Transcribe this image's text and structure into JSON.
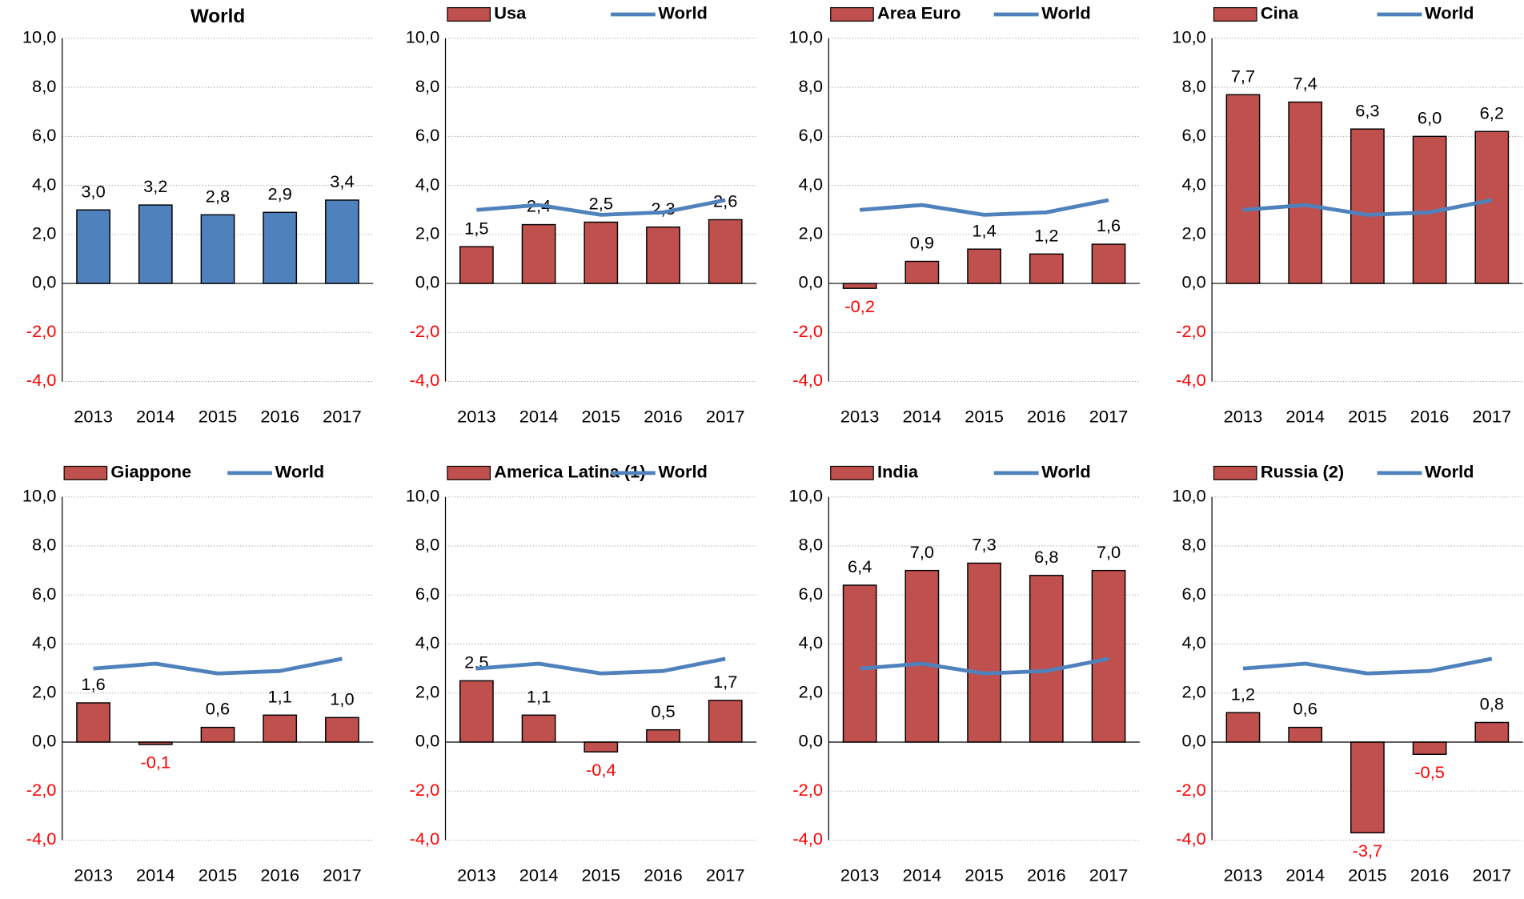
{
  "chart_data": [
    {
      "type": "bar",
      "title": "World",
      "categories": [
        "2013",
        "2014",
        "2015",
        "2016",
        "2017"
      ],
      "values": [
        3.0,
        3.2,
        2.8,
        2.9,
        3.4
      ],
      "value_labels": [
        "3,0",
        "3,2",
        "2,8",
        "2,9",
        "3,4"
      ],
      "color": "#4f81bd",
      "ylim": [
        -4,
        10
      ],
      "yticks": [
        {
          "value": -4,
          "label": "-4,0"
        },
        {
          "value": -2,
          "label": "-2,0"
        },
        {
          "value": 0,
          "label": "0,0"
        },
        {
          "value": 2,
          "label": "2,0"
        },
        {
          "value": 4,
          "label": "4,0"
        },
        {
          "value": 6,
          "label": "6,0"
        },
        {
          "value": 8,
          "label": "8,0"
        },
        {
          "value": 10,
          "label": "10,0"
        }
      ],
      "grid": true
    },
    {
      "type": "combo",
      "categories": [
        "2013",
        "2014",
        "2015",
        "2016",
        "2017"
      ],
      "series": [
        {
          "name": "Usa",
          "color": "#c0504d",
          "values": [
            1.5,
            2.4,
            2.5,
            2.3,
            2.6
          ],
          "value_labels": [
            "1,5",
            "2,4",
            "2,5",
            "2,3",
            "2,6"
          ]
        },
        {
          "name": "World",
          "color": "#4f81bd",
          "values": [
            3.0,
            3.2,
            2.8,
            2.9,
            3.4
          ]
        }
      ],
      "ylim": [
        -4,
        10
      ],
      "yticks": [
        {
          "value": -4,
          "label": "-4,0"
        },
        {
          "value": -2,
          "label": "-2,0"
        },
        {
          "value": 0,
          "label": "0,0"
        },
        {
          "value": 2,
          "label": "2,0"
        },
        {
          "value": 4,
          "label": "4,0"
        },
        {
          "value": 6,
          "label": "6,0"
        },
        {
          "value": 8,
          "label": "8,0"
        },
        {
          "value": 10,
          "label": "10,0"
        }
      ],
      "grid": true
    },
    {
      "type": "combo",
      "categories": [
        "2013",
        "2014",
        "2015",
        "2016",
        "2017"
      ],
      "series": [
        {
          "name": "Area Euro",
          "color": "#c0504d",
          "values": [
            -0.2,
            0.9,
            1.4,
            1.2,
            1.6
          ],
          "value_labels": [
            "-0,2",
            "0,9",
            "1,4",
            "1,2",
            "1,6"
          ]
        },
        {
          "name": "World",
          "color": "#4f81bd",
          "values": [
            3.0,
            3.2,
            2.8,
            2.9,
            3.4
          ]
        }
      ],
      "ylim": [
        -4,
        10
      ],
      "yticks": [
        {
          "value": -4,
          "label": "-4,0"
        },
        {
          "value": -2,
          "label": "-2,0"
        },
        {
          "value": 0,
          "label": "0,0"
        },
        {
          "value": 2,
          "label": "2,0"
        },
        {
          "value": 4,
          "label": "4,0"
        },
        {
          "value": 6,
          "label": "6,0"
        },
        {
          "value": 8,
          "label": "8,0"
        },
        {
          "value": 10,
          "label": "10,0"
        }
      ],
      "grid": true
    },
    {
      "type": "combo",
      "categories": [
        "2013",
        "2014",
        "2015",
        "2016",
        "2017"
      ],
      "series": [
        {
          "name": "Cina",
          "color": "#c0504d",
          "values": [
            7.7,
            7.4,
            6.3,
            6.0,
            6.2
          ],
          "value_labels": [
            "7,7",
            "7,4",
            "6,3",
            "6,0",
            "6,2"
          ]
        },
        {
          "name": "World",
          "color": "#4f81bd",
          "values": [
            3.0,
            3.2,
            2.8,
            2.9,
            3.4
          ]
        }
      ],
      "ylim": [
        -4,
        10
      ],
      "yticks": [
        {
          "value": -4,
          "label": "-4,0"
        },
        {
          "value": -2,
          "label": "-2,0"
        },
        {
          "value": 0,
          "label": "0,0"
        },
        {
          "value": 2,
          "label": "2,0"
        },
        {
          "value": 4,
          "label": "4,0"
        },
        {
          "value": 6,
          "label": "6,0"
        },
        {
          "value": 8,
          "label": "8,0"
        },
        {
          "value": 10,
          "label": "10,0"
        }
      ],
      "grid": true
    },
    {
      "type": "combo",
      "categories": [
        "2013",
        "2014",
        "2015",
        "2016",
        "2017"
      ],
      "series": [
        {
          "name": "Giappone",
          "color": "#c0504d",
          "values": [
            1.6,
            -0.1,
            0.6,
            1.1,
            1.0
          ],
          "value_labels": [
            "1,6",
            "-0,1",
            "0,6",
            "1,1",
            "1,0"
          ]
        },
        {
          "name": "World",
          "color": "#4f81bd",
          "values": [
            3.0,
            3.2,
            2.8,
            2.9,
            3.4
          ]
        }
      ],
      "ylim": [
        -4,
        10
      ],
      "yticks": [
        {
          "value": -4,
          "label": "-4,0"
        },
        {
          "value": -2,
          "label": "-2,0"
        },
        {
          "value": 0,
          "label": "0,0"
        },
        {
          "value": 2,
          "label": "2,0"
        },
        {
          "value": 4,
          "label": "4,0"
        },
        {
          "value": 6,
          "label": "6,0"
        },
        {
          "value": 8,
          "label": "8,0"
        },
        {
          "value": 10,
          "label": "10,0"
        }
      ],
      "grid": true
    },
    {
      "type": "combo",
      "categories": [
        "2013",
        "2014",
        "2015",
        "2016",
        "2017"
      ],
      "series": [
        {
          "name": "America Latina (1)",
          "color": "#c0504d",
          "values": [
            2.5,
            1.1,
            -0.4,
            0.5,
            1.7
          ],
          "value_labels": [
            "2,5",
            "1,1",
            "-0,4",
            "0,5",
            "1,7"
          ]
        },
        {
          "name": "World",
          "color": "#4f81bd",
          "values": [
            3.0,
            3.2,
            2.8,
            2.9,
            3.4
          ]
        }
      ],
      "ylim": [
        -4,
        10
      ],
      "yticks": [
        {
          "value": -4,
          "label": "-4,0"
        },
        {
          "value": -2,
          "label": "-2,0"
        },
        {
          "value": 0,
          "label": "0,0"
        },
        {
          "value": 2,
          "label": "2,0"
        },
        {
          "value": 4,
          "label": "4,0"
        },
        {
          "value": 6,
          "label": "6,0"
        },
        {
          "value": 8,
          "label": "8,0"
        },
        {
          "value": 10,
          "label": "10,0"
        }
      ],
      "grid": true
    },
    {
      "type": "combo",
      "categories": [
        "2013",
        "2014",
        "2015",
        "2016",
        "2017"
      ],
      "series": [
        {
          "name": "India",
          "color": "#c0504d",
          "values": [
            6.4,
            7.0,
            7.3,
            6.8,
            7.0
          ],
          "value_labels": [
            "6,4",
            "7,0",
            "7,3",
            "6,8",
            "7,0"
          ]
        },
        {
          "name": "World",
          "color": "#4f81bd",
          "values": [
            3.0,
            3.2,
            2.8,
            2.9,
            3.4
          ]
        }
      ],
      "ylim": [
        -4,
        10
      ],
      "yticks": [
        {
          "value": -4,
          "label": "-4,0"
        },
        {
          "value": -2,
          "label": "-2,0"
        },
        {
          "value": 0,
          "label": "0,0"
        },
        {
          "value": 2,
          "label": "2,0"
        },
        {
          "value": 4,
          "label": "4,0"
        },
        {
          "value": 6,
          "label": "6,0"
        },
        {
          "value": 8,
          "label": "8,0"
        },
        {
          "value": 10,
          "label": "10,0"
        }
      ],
      "grid": true
    },
    {
      "type": "combo",
      "categories": [
        "2013",
        "2014",
        "2015",
        "2016",
        "2017"
      ],
      "series": [
        {
          "name": "Russia (2)",
          "color": "#c0504d",
          "values": [
            1.2,
            0.6,
            -3.7,
            -0.5,
            0.8
          ],
          "value_labels": [
            "1,2",
            "0,6",
            "-3,7",
            "-0,5",
            "0,8"
          ]
        },
        {
          "name": "World",
          "color": "#4f81bd",
          "values": [
            3.0,
            3.2,
            2.8,
            2.9,
            3.4
          ]
        }
      ],
      "ylim": [
        -4,
        10
      ],
      "yticks": [
        {
          "value": -4,
          "label": "-4,0"
        },
        {
          "value": -2,
          "label": "-2,0"
        },
        {
          "value": 0,
          "label": "0,0"
        },
        {
          "value": 2,
          "label": "2,0"
        },
        {
          "value": 4,
          "label": "4,0"
        },
        {
          "value": 6,
          "label": "6,0"
        },
        {
          "value": 8,
          "label": "8,0"
        },
        {
          "value": 10,
          "label": "10,0"
        }
      ],
      "grid": true
    }
  ]
}
